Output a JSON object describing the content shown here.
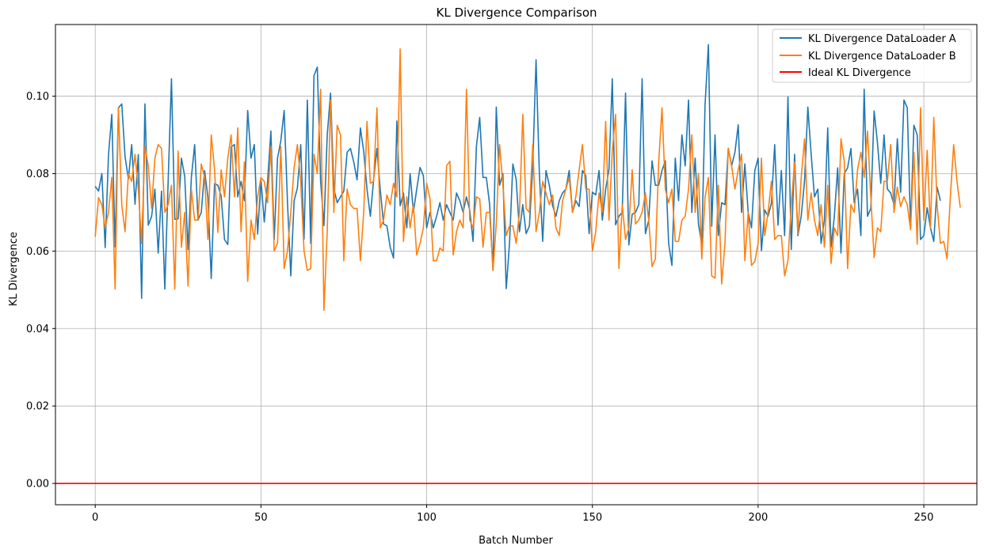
{
  "chart_data": {
    "type": "line",
    "title": "KL Divergence Comparison",
    "xlabel": "Batch Number",
    "ylabel": "KL Divergence",
    "xlim": [
      -12,
      266
    ],
    "ylim": [
      -0.0055,
      0.1185
    ],
    "xticks": [
      0,
      50,
      100,
      150,
      200,
      250
    ],
    "xtick_labels": [
      "0",
      "50",
      "100",
      "150",
      "200",
      "250"
    ],
    "yticks": [
      0.0,
      0.02,
      0.04,
      0.06,
      0.08,
      0.1
    ],
    "ytick_labels": [
      "0.00",
      "0.02",
      "0.04",
      "0.06",
      "0.08",
      "0.10"
    ],
    "grid": true,
    "legend_position": "top-right",
    "series": [
      {
        "name": "KL Divergence DataLoader A",
        "color": "#1f77b4",
        "x_start": 0,
        "x_step": 1,
        "values": [
          0.0767,
          0.0755,
          0.08,
          0.0609,
          0.0848,
          0.0953,
          0.0611,
          0.097,
          0.098,
          0.0844,
          0.0786,
          0.0875,
          0.0721,
          0.0849,
          0.0478,
          0.098,
          0.0667,
          0.0689,
          0.076,
          0.0595,
          0.0755,
          0.0502,
          0.078,
          0.1045,
          0.0682,
          0.0683,
          0.084,
          0.0793,
          0.0604,
          0.079,
          0.0875,
          0.068,
          0.07,
          0.0808,
          0.0738,
          0.0529,
          0.0774,
          0.077,
          0.0742,
          0.063,
          0.0617,
          0.0869,
          0.0875,
          0.074,
          0.078,
          0.073,
          0.0963,
          0.084,
          0.0875,
          0.0644,
          0.0784,
          0.0675,
          0.078,
          0.091,
          0.063,
          0.084,
          0.0885,
          0.0963,
          0.0727,
          0.0536,
          0.073,
          0.0763,
          0.0875,
          0.0631,
          0.099,
          0.062,
          0.1053,
          0.1075,
          0.078,
          0.0666,
          0.09,
          0.1008,
          0.0761,
          0.0725,
          0.074,
          0.0755,
          0.0855,
          0.0865,
          0.083,
          0.0784,
          0.0918,
          0.0858,
          0.076,
          0.069,
          0.0785,
          0.0865,
          0.0758,
          0.067,
          0.0665,
          0.061,
          0.0582,
          0.0936,
          0.0717,
          0.075,
          0.066,
          0.08,
          0.07,
          0.076,
          0.0816,
          0.0795,
          0.066,
          0.07,
          0.066,
          0.069,
          0.0725,
          0.068,
          0.072,
          0.07,
          0.068,
          0.075,
          0.073,
          0.07,
          0.074,
          0.0705,
          0.0625,
          0.087,
          0.0945,
          0.079,
          0.079,
          0.072,
          0.055,
          0.0972,
          0.077,
          0.08,
          0.0503,
          0.062,
          0.0825,
          0.0785,
          0.065,
          0.072,
          0.0645,
          0.0665,
          0.082,
          0.1094,
          0.08,
          0.0625,
          0.0808,
          0.077,
          0.0717,
          0.069,
          0.073,
          0.075,
          0.076,
          0.0808,
          0.07,
          0.073,
          0.0715,
          0.0808,
          0.0795,
          0.0645,
          0.0752,
          0.0745,
          0.0808,
          0.068,
          0.076,
          0.081,
          0.1045,
          0.0668,
          0.069,
          0.07,
          0.1008,
          0.0616,
          0.0695,
          0.07,
          0.072,
          0.1045,
          0.0645,
          0.068,
          0.0833,
          0.077,
          0.077,
          0.0808,
          0.0833,
          0.062,
          0.0563,
          0.084,
          0.073,
          0.09,
          0.082,
          0.099,
          0.07,
          0.084,
          0.067,
          0.0618,
          0.098,
          0.1133,
          0.0664,
          0.09,
          0.064,
          0.0725,
          0.072,
          0.0865,
          0.082,
          0.0855,
          0.0926,
          0.07,
          0.0825,
          0.07,
          0.066,
          0.0808,
          0.084,
          0.0601,
          0.0706,
          0.069,
          0.0723,
          0.0875,
          0.0667,
          0.0808,
          0.064,
          0.0998,
          0.0604,
          0.085,
          0.064,
          0.069,
          0.078,
          0.0972,
          0.085,
          0.074,
          0.076,
          0.062,
          0.068,
          0.0918,
          0.061,
          0.069,
          0.0815,
          0.0595,
          0.08,
          0.0815,
          0.0865,
          0.0725,
          0.076,
          0.064,
          0.1018,
          0.069,
          0.071,
          0.0962,
          0.088,
          0.0775,
          0.09,
          0.076,
          0.075,
          0.072,
          0.089,
          0.0752,
          0.099,
          0.097,
          0.066,
          0.0925,
          0.09,
          0.063,
          0.064,
          0.0712,
          0.066,
          0.0625,
          0.0765,
          0.073
        ]
      },
      {
        "name": "KL Divergence DataLoader B",
        "color": "#ff7f0e",
        "x_start": 0,
        "x_step": 1,
        "values": [
          0.0637,
          0.0738,
          0.072,
          0.066,
          0.07,
          0.079,
          0.0502,
          0.097,
          0.072,
          0.065,
          0.08,
          0.078,
          0.085,
          0.076,
          0.062,
          0.087,
          0.082,
          0.071,
          0.084,
          0.0875,
          0.0865,
          0.07,
          0.072,
          0.077,
          0.0502,
          0.0858,
          0.061,
          0.07,
          0.051,
          0.076,
          0.068,
          0.068,
          0.0825,
          0.079,
          0.063,
          0.09,
          0.081,
          0.0648,
          0.081,
          0.074,
          0.084,
          0.09,
          0.074,
          0.0918,
          0.065,
          0.083,
          0.0522,
          0.068,
          0.063,
          0.074,
          0.079,
          0.078,
          0.0725,
          0.087,
          0.06,
          0.062,
          0.087,
          0.0555,
          0.06,
          0.07,
          0.0815,
          0.0875,
          0.078,
          0.06,
          0.055,
          0.0555,
          0.085,
          0.08,
          0.1018,
          0.0447,
          0.065,
          0.099,
          0.07,
          0.0925,
          0.09,
          0.0575,
          0.076,
          0.072,
          0.071,
          0.071,
          0.0575,
          0.07,
          0.0935,
          0.0775,
          0.078,
          0.097,
          0.066,
          0.068,
          0.0745,
          0.072,
          0.0775,
          0.074,
          0.1122,
          0.0625,
          0.074,
          0.066,
          0.072,
          0.059,
          0.062,
          0.066,
          0.0775,
          0.0735,
          0.0575,
          0.0575,
          0.0608,
          0.06,
          0.082,
          0.0832,
          0.059,
          0.065,
          0.068,
          0.066,
          0.1018,
          0.068,
          0.066,
          0.074,
          0.0735,
          0.061,
          0.07,
          0.07,
          0.055,
          0.067,
          0.0875,
          0.077,
          0.064,
          0.0665,
          0.0665,
          0.062,
          0.07,
          0.0953,
          0.071,
          0.07,
          0.0875,
          0.065,
          0.07,
          0.078,
          0.075,
          0.072,
          0.0745,
          0.066,
          0.064,
          0.073,
          0.076,
          0.079,
          0.07,
          0.074,
          0.081,
          0.0875,
          0.076,
          0.076,
          0.06,
          0.065,
          0.075,
          0.07,
          0.0935,
          0.068,
          0.0858,
          0.0953,
          0.0555,
          0.072,
          0.063,
          0.066,
          0.081,
          0.067,
          0.068,
          0.07,
          0.075,
          0.068,
          0.056,
          0.058,
          0.083,
          0.097,
          0.076,
          0.0725,
          0.076,
          0.0625,
          0.0625,
          0.068,
          0.069,
          0.076,
          0.09,
          0.07,
          0.08,
          0.058,
          0.074,
          0.079,
          0.0536,
          0.053,
          0.077,
          0.0515,
          0.062,
          0.0866,
          0.082,
          0.076,
          0.081,
          0.085,
          0.0575,
          0.07,
          0.0563,
          0.0573,
          0.062,
          0.084,
          0.064,
          0.07,
          0.078,
          0.063,
          0.064,
          0.064,
          0.0536,
          0.0575,
          0.072,
          0.083,
          0.0645,
          0.079,
          0.089,
          0.068,
          0.075,
          0.068,
          0.064,
          0.072,
          0.061,
          0.077,
          0.0568,
          0.066,
          0.064,
          0.089,
          0.083,
          0.0555,
          0.072,
          0.07,
          0.081,
          0.0855,
          0.079,
          0.091,
          0.074,
          0.0583,
          0.066,
          0.065,
          0.078,
          0.078,
          0.0875,
          0.07,
          0.0765,
          0.0715,
          0.074,
          0.072,
          0.0655,
          0.0855,
          0.0618,
          0.097,
          0.068,
          0.086,
          0.066,
          0.0945,
          0.072,
          0.062,
          0.0625,
          0.058,
          0.074,
          0.0875,
          0.078,
          0.0712
        ]
      },
      {
        "name": "Ideal KL Divergence",
        "color": "#ff0000",
        "horizontal_line": 0.0
      }
    ]
  }
}
